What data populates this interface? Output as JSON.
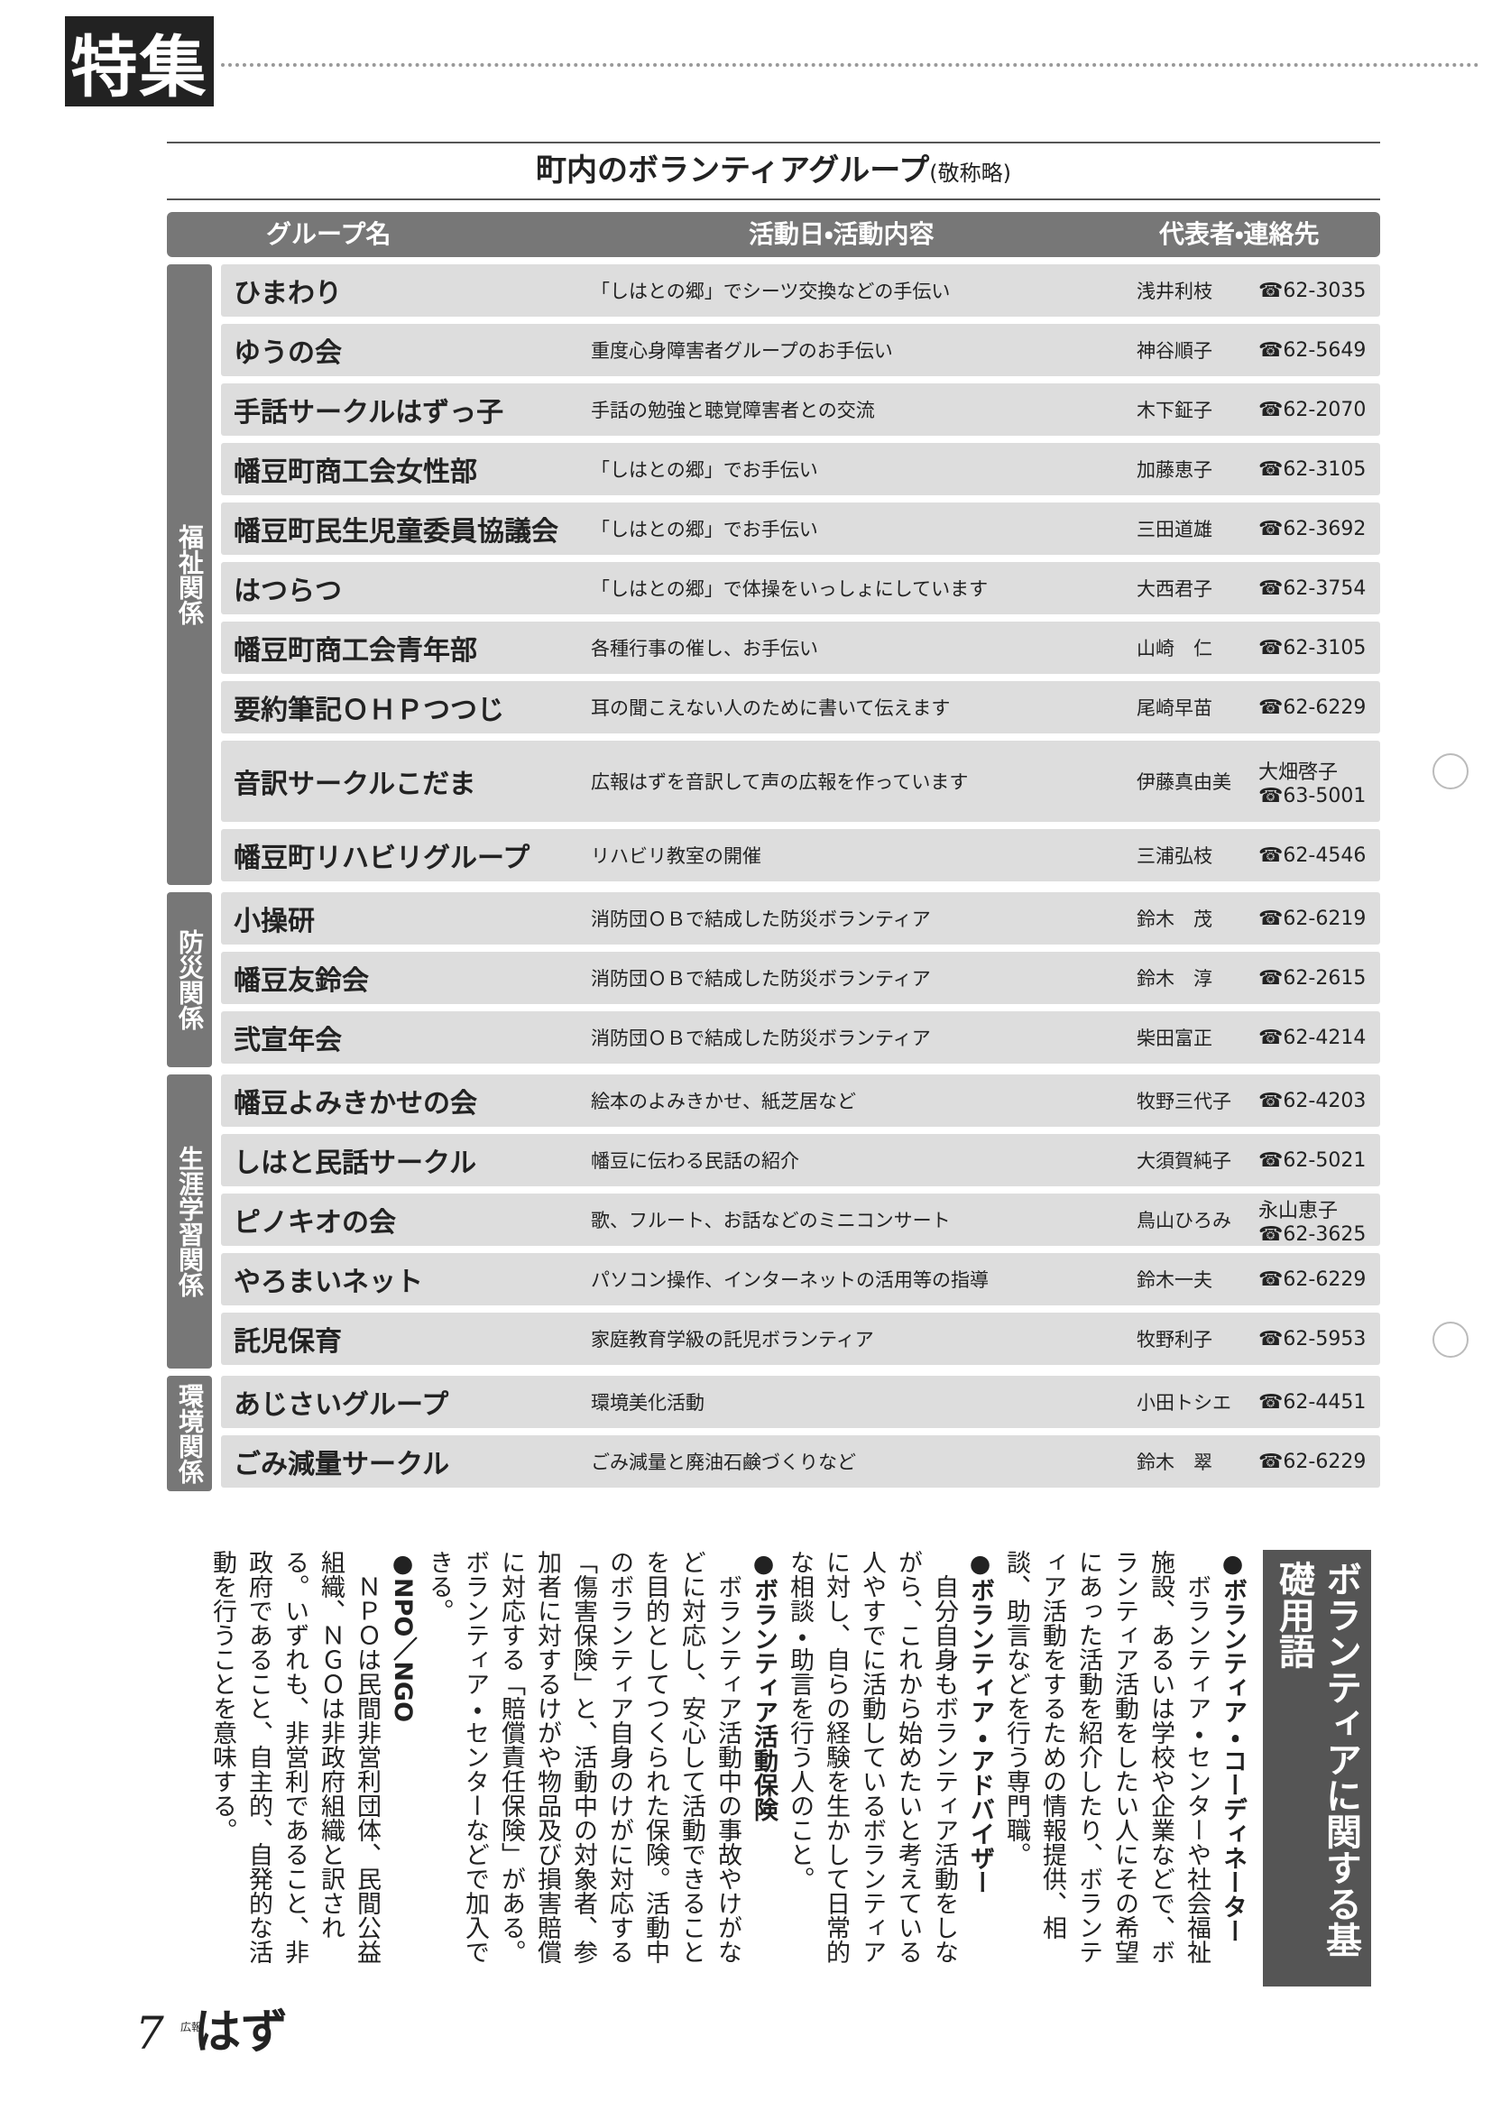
{
  "header": {
    "tag": "特集"
  },
  "table": {
    "title": "町内のボランティアグループ",
    "note": "(敬称略)",
    "columns": [
      "グループ名",
      "活動日・活動内容",
      "代表者・連絡先"
    ],
    "sections": [
      {
        "category": "福祉関係",
        "rows": [
          {
            "name": "ひまわり",
            "activity": "「しはとの郷」でシーツ交換などの手伝い",
            "rep": "浅井利枝",
            "contact": [
              "☎62-3035"
            ]
          },
          {
            "name": "ゆうの会",
            "activity": "重度心身障害者グループのお手伝い",
            "rep": "神谷順子",
            "contact": [
              "☎62-5649"
            ]
          },
          {
            "name": "手話サークルはずっ子",
            "activity": "手話の勉強と聴覚障害者との交流",
            "rep": "木下鉦子",
            "contact": [
              "☎62-2070"
            ]
          },
          {
            "name": "幡豆町商工会女性部",
            "activity": "「しはとの郷」でお手伝い",
            "rep": "加藤恵子",
            "contact": [
              "☎62-3105"
            ]
          },
          {
            "name": "幡豆町民生児童委員協議会",
            "activity": "「しはとの郷」でお手伝い",
            "rep": "三田道雄",
            "contact": [
              "☎62-3692"
            ]
          },
          {
            "name": "はつらつ",
            "activity": "「しはとの郷」で体操をいっしょにしています",
            "rep": "大西君子",
            "contact": [
              "☎62-3754"
            ]
          },
          {
            "name": "幡豆町商工会青年部",
            "activity": "各種行事の催し、お手伝い",
            "rep": "山崎　仁",
            "contact": [
              "☎62-3105"
            ]
          },
          {
            "name": "要約筆記ＯＨＰつつじ",
            "activity": "耳の聞こえない人のために書いて伝えます",
            "rep": "尾崎早苗",
            "contact": [
              "☎62-6229"
            ]
          },
          {
            "name": "音訳サークルこだま",
            "activity": "広報はずを音訳して声の広報を作っています",
            "rep": "伊藤真由美",
            "contact": [
              "大畑啓子",
              "☎63-5001"
            ]
          },
          {
            "name": "幡豆町リハビリグループ",
            "activity": "リハビリ教室の開催",
            "rep": "三浦弘枝",
            "contact": [
              "☎62-4546"
            ]
          }
        ]
      },
      {
        "category": "防災関係",
        "rows": [
          {
            "name": "小操研",
            "activity": "消防団ＯＢで結成した防災ボランティア",
            "rep": "鈴木　茂",
            "contact": [
              "☎62-6219"
            ]
          },
          {
            "name": "幡豆友鈴会",
            "activity": "消防団ＯＢで結成した防災ボランティア",
            "rep": "鈴木　淳",
            "contact": [
              "☎62-2615"
            ]
          },
          {
            "name": "弐宣年会",
            "activity": "消防団ＯＢで結成した防災ボランティア",
            "rep": "柴田富正",
            "contact": [
              "☎62-4214"
            ]
          }
        ]
      },
      {
        "category": "生涯学習関係",
        "rows": [
          {
            "name": "幡豆よみきかせの会",
            "activity": "絵本のよみきかせ、紙芝居など",
            "rep": "牧野三代子",
            "contact": [
              "☎62-4203"
            ]
          },
          {
            "name": "しはと民話サークル",
            "activity": "幡豆に伝わる民話の紹介",
            "rep": "大須賀純子",
            "contact": [
              "☎62-5021"
            ]
          },
          {
            "name": "ピノキオの会",
            "activity": "歌、フルート、お話などのミニコンサート",
            "rep": "鳥山ひろみ",
            "contact": [
              "永山恵子",
              "☎62-3625"
            ]
          },
          {
            "name": "やろまいネット",
            "activity": "パソコン操作、インターネットの活用等の指導",
            "rep": "鈴木一夫",
            "contact": [
              "☎62-6229"
            ]
          },
          {
            "name": "託児保育",
            "activity": "家庭教育学級の託児ボランティア",
            "rep": "牧野利子",
            "contact": [
              "☎62-5953"
            ]
          }
        ]
      },
      {
        "category": "環境関係",
        "rows": [
          {
            "name": "あじさいグループ",
            "activity": "環境美化活動",
            "rep": "小田トシエ",
            "contact": [
              "☎62-4451"
            ]
          },
          {
            "name": "ごみ減量サークル",
            "activity": "ごみ減量と廃油石鹸づくりなど",
            "rep": "鈴木　翠",
            "contact": [
              "☎62-6229"
            ]
          }
        ]
      }
    ]
  },
  "glossary": {
    "title": "ボランティアに関する基礎用語",
    "terms": [
      {
        "term": "●ボランティア・コーディネーター",
        "text": "ボランティア・センターや社会福祉施設、あるいは学校や企業などで、ボランティア活動をしたい人にその希望にあった活動を紹介したり、ボランティア活動をするための情報提供、相談、助言などを行う専門職。"
      },
      {
        "term": "●ボランティア・アドバイザー",
        "text": "自分自身もボランティア活動をしながら、これから始めたいと考えている人やすでに活動しているボランティアに対し、自らの経験を生かして日常的な相談・助言を行う人のこと。"
      },
      {
        "term": "●ボランティア活動保険",
        "text": "ボランティア活動中の事故やけがなどに対応し、安心して活動できることを目的としてつくられた保険。活動中のボランティア自身のけがに対応する「傷害保険」と、活動中の対象者、参加者に対するけがや物品及び損害賠償に対応する「賠償責任保険」がある。ボランティア・センターなどで加入できる。"
      },
      {
        "term": "●NPO／NGO",
        "text": "ＮＰＯは民間非営利団体、民間公益組織、ＮＧＯは非政府組織と訳される。いずれも、非営利であること、非政府であること、自主的、自発的な活動を行うことを意味する。"
      }
    ]
  },
  "footer": {
    "page": "7",
    "logo_small": "広報",
    "logo": "はず"
  }
}
